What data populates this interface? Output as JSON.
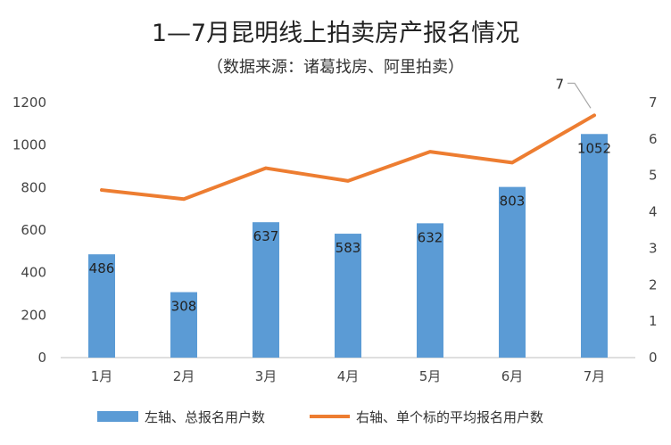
{
  "chart_data": {
    "type": "bar",
    "title": "1—7月昆明线上拍卖房产报名情况",
    "subtitle": "（数据来源：诸葛找房、阿里拍卖）",
    "categories": [
      "1月",
      "2月",
      "3月",
      "4月",
      "5月",
      "6月",
      "7月"
    ],
    "left_axis": {
      "ylim": [
        0,
        1200
      ],
      "ticks": [
        "0",
        "200",
        "400",
        "600",
        "800",
        "1000",
        "1200"
      ]
    },
    "right_axis": {
      "ylim": [
        0,
        7
      ],
      "ticks": [
        "0",
        "1",
        "2",
        "3",
        "4",
        "5",
        "6",
        "7"
      ]
    },
    "series": [
      {
        "name": "左轴、总报名用户数",
        "type": "bar",
        "axis": "left",
        "color": "#5B9BD5",
        "values": [
          486,
          308,
          637,
          583,
          632,
          803,
          1052
        ],
        "labels": [
          "486",
          "308",
          "637",
          "583",
          "632",
          "803",
          "1052"
        ]
      },
      {
        "name": "右轴、单个标的平均报名用户数",
        "type": "line",
        "axis": "right",
        "color": "#ED7D31",
        "values": [
          4.6,
          4.35,
          5.2,
          4.85,
          5.65,
          5.35,
          6.65
        ],
        "callout_label": "7"
      }
    ],
    "grid": false,
    "legend": "bottom"
  }
}
